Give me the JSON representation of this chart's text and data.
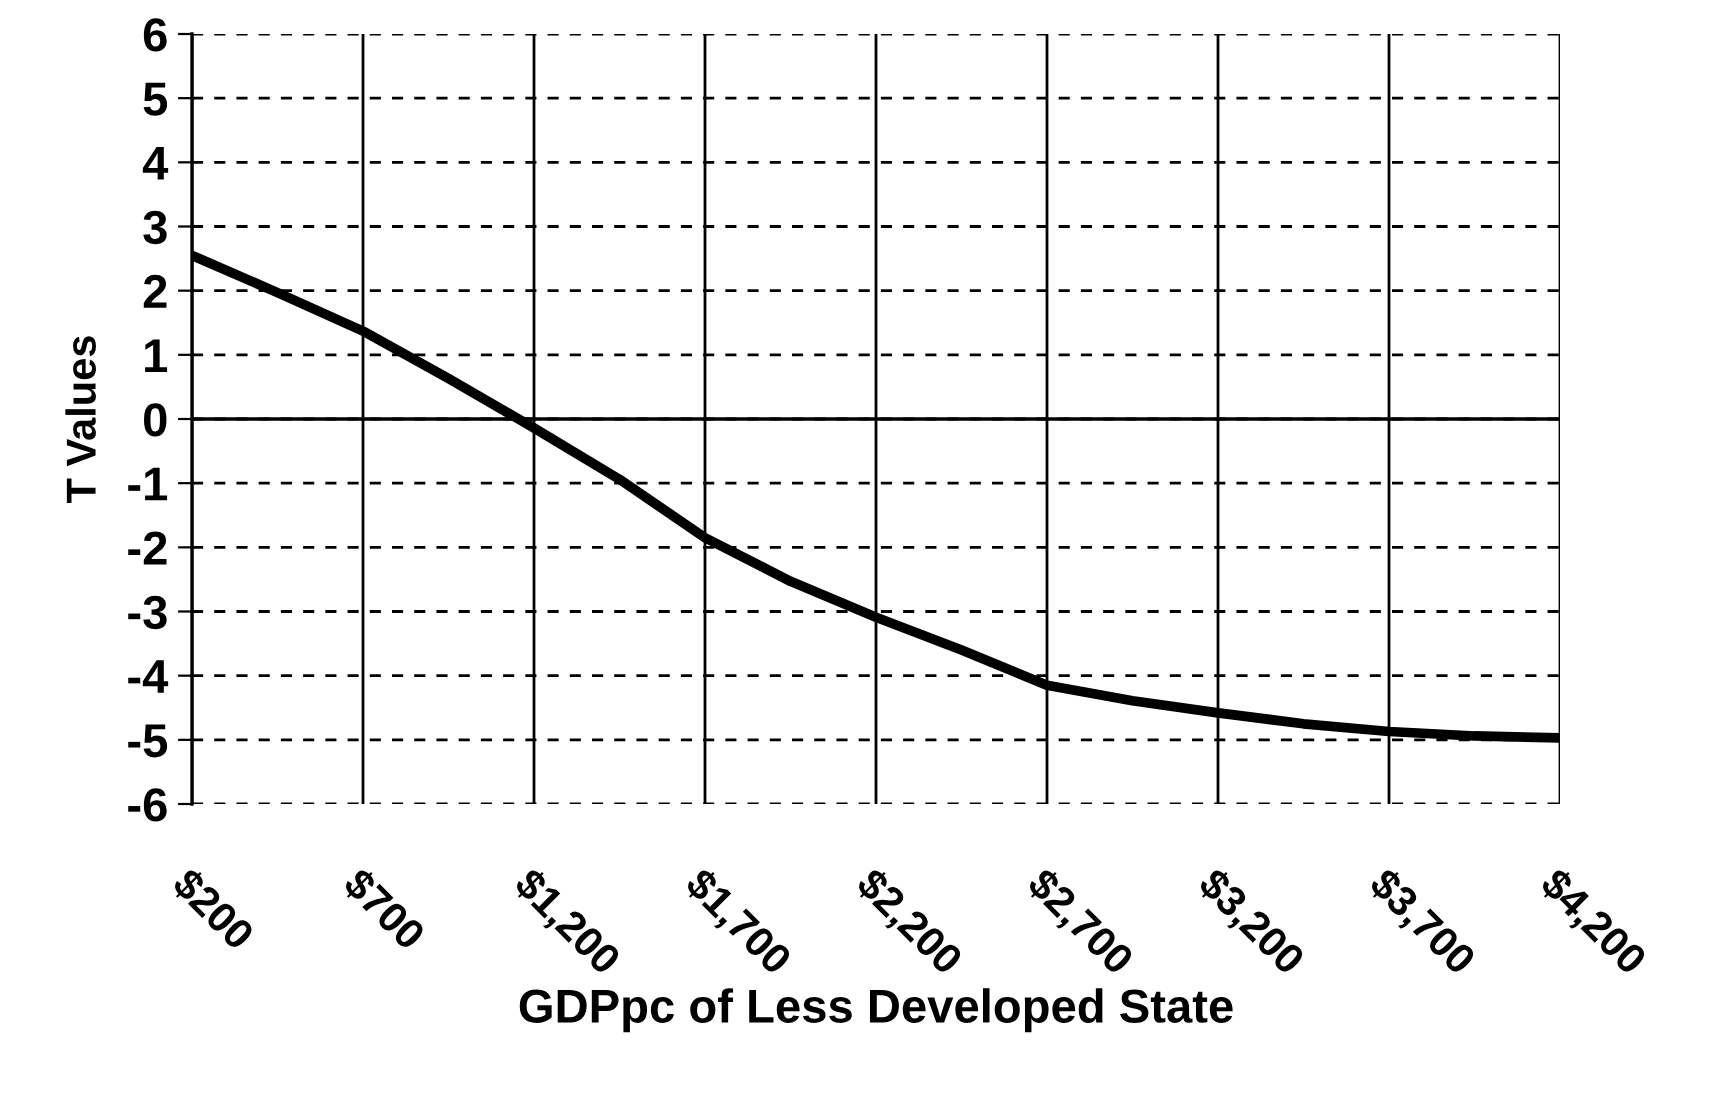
{
  "chart_data": {
    "type": "line",
    "xlabel": "GDPpc of Less Developed State",
    "ylabel": "T Values",
    "x": [
      200,
      450,
      700,
      950,
      1200,
      1450,
      1700,
      1950,
      2200,
      2450,
      2700,
      2950,
      3200,
      3450,
      3700,
      3950,
      4200
    ],
    "series": [
      {
        "color": "#000000",
        "values": [
          2.55,
          1.97,
          1.37,
          0.63,
          -0.14,
          -0.94,
          -1.85,
          -2.53,
          -3.09,
          -3.6,
          -4.15,
          -4.39,
          -4.58,
          -4.75,
          -4.87,
          -4.94,
          -4.97
        ]
      }
    ],
    "xlim": [
      200,
      4200
    ],
    "xticks": [
      {
        "value": 200,
        "label": "$200"
      },
      {
        "value": 700,
        "label": "$700"
      },
      {
        "value": 1200,
        "label": "$1,200"
      },
      {
        "value": 1700,
        "label": "$1,700"
      },
      {
        "value": 2200,
        "label": "$2,200"
      },
      {
        "value": 2700,
        "label": "$2,700"
      },
      {
        "value": 3200,
        "label": "$3,200"
      },
      {
        "value": 3700,
        "label": "$3,700"
      },
      {
        "value": 4200,
        "label": "$4,200"
      }
    ],
    "ylim": [
      -6,
      6
    ],
    "yticks": [
      6,
      5,
      4,
      3,
      2,
      1,
      0,
      -1,
      -2,
      -3,
      -4,
      -5,
      -6
    ],
    "grid": true,
    "ref_lines": [
      {
        "axis": "y",
        "value": 0,
        "color": "#000000",
        "line_style": "solid"
      }
    ],
    "marker": "none",
    "line_style": "solid",
    "legend": false
  }
}
